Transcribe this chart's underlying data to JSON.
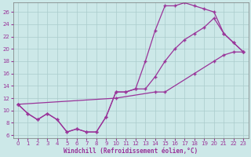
{
  "xlabel": "Windchill (Refroidissement éolien,°C)",
  "ylabel": "",
  "xlim": [
    -0.5,
    23.5
  ],
  "ylim": [
    5.5,
    27.5
  ],
  "yticks": [
    6,
    8,
    10,
    12,
    14,
    16,
    18,
    20,
    22,
    24,
    26
  ],
  "xticks": [
    0,
    1,
    2,
    3,
    4,
    5,
    6,
    7,
    8,
    9,
    10,
    11,
    12,
    13,
    14,
    15,
    16,
    17,
    18,
    19,
    20,
    21,
    22,
    23
  ],
  "bg_color": "#cce8e8",
  "line_color": "#993399",
  "grid_color": "#aacccc",
  "line1_x": [
    0,
    1,
    2,
    3,
    4,
    5,
    6,
    7,
    8,
    9,
    10,
    11,
    12,
    13,
    14,
    15,
    16,
    17,
    18,
    19,
    20,
    21,
    22,
    23
  ],
  "line1_y": [
    11,
    9.5,
    8.5,
    9.5,
    8.5,
    6.5,
    7.0,
    6.5,
    6.5,
    9.0,
    13.0,
    13.0,
    13.5,
    18.0,
    23.0,
    27.0,
    27.0,
    27.5,
    27.0,
    26.5,
    26.0,
    22.5,
    21.0,
    19.5
  ],
  "line2_x": [
    0,
    1,
    2,
    3,
    4,
    5,
    6,
    7,
    8,
    9,
    10,
    11,
    12,
    13,
    14,
    15,
    16,
    17,
    18,
    19,
    20,
    21,
    22,
    23
  ],
  "line2_y": [
    11,
    9.5,
    8.5,
    9.5,
    8.5,
    6.5,
    7.0,
    6.5,
    6.5,
    9.0,
    13.0,
    13.0,
    13.5,
    13.5,
    15.5,
    18.0,
    20.0,
    21.5,
    22.5,
    23.5,
    25.0,
    22.5,
    21.0,
    19.5
  ],
  "line3_x": [
    0,
    10,
    14,
    15,
    18,
    20,
    21,
    22,
    23
  ],
  "line3_y": [
    11,
    12.0,
    13.0,
    13.0,
    16.0,
    18.0,
    19.0,
    19.5,
    19.5
  ]
}
